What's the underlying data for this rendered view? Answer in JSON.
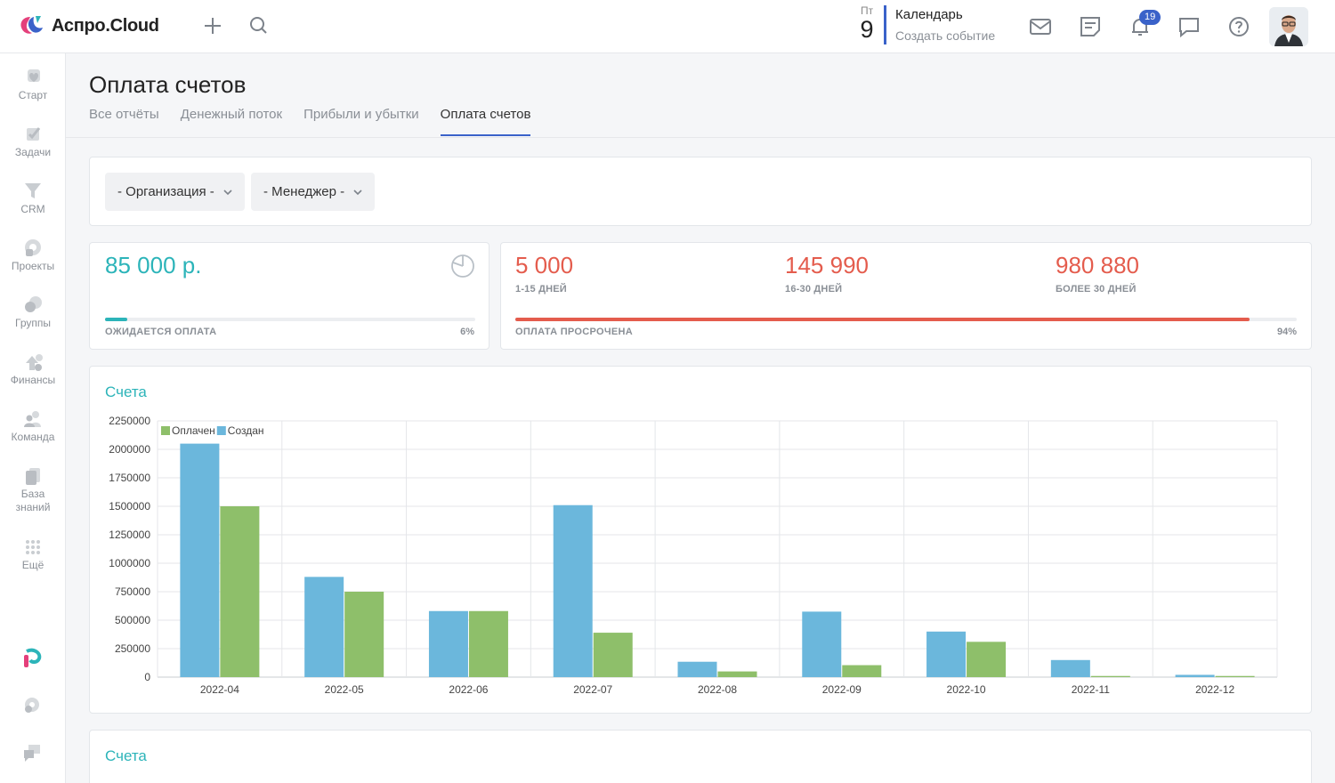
{
  "app": {
    "name": "Аспро.Cloud"
  },
  "topbar": {
    "calendar": {
      "day_of_week": "Пт",
      "day": "9",
      "title": "Календарь",
      "subtitle": "Создать событие"
    },
    "notifications_count": "19",
    "icons": [
      "plus-icon",
      "search-icon",
      "mail-icon",
      "notes-icon",
      "bell-icon",
      "chat-icon",
      "help-icon"
    ]
  },
  "sidebar": {
    "items": [
      {
        "label": "Старт",
        "icon": "heart-icon"
      },
      {
        "label": "Задачи",
        "icon": "check-icon"
      },
      {
        "label": "CRM",
        "icon": "funnel-icon"
      },
      {
        "label": "Проекты",
        "icon": "projects-icon"
      },
      {
        "label": "Группы",
        "icon": "groups-icon"
      },
      {
        "label": "Финансы",
        "icon": "finance-icon"
      },
      {
        "label": "Команда",
        "icon": "team-icon"
      },
      {
        "label": "База знаний",
        "icon": "knowledge-icon"
      },
      {
        "label": "Ещё",
        "icon": "more-dots-icon"
      }
    ]
  },
  "page": {
    "title": "Оплата счетов",
    "tabs": [
      {
        "label": "Все отчёты",
        "active": false
      },
      {
        "label": "Денежный поток",
        "active": false
      },
      {
        "label": "Прибыли и убытки",
        "active": false
      },
      {
        "label": "Оплата счетов",
        "active": true
      }
    ]
  },
  "filters": {
    "organization": "- Организация -",
    "manager": "- Менеджер -"
  },
  "awaiting": {
    "amount": "85 000 р.",
    "label": "ОЖИДАЕТСЯ ОПЛАТА",
    "percent_text": "6%",
    "progress": 0.06,
    "color": "#2cb4b9"
  },
  "overdue": {
    "buckets": [
      {
        "amount": "5 000",
        "label": "1-15 ДНЕЙ"
      },
      {
        "amount": "145 990",
        "label": "16-30 ДНЕЙ"
      },
      {
        "amount": "980 880",
        "label": "БОЛЕЕ 30 ДНЕЙ"
      }
    ],
    "label": "ОПЛАТА ПРОСРОЧЕНА",
    "percent_text": "94%",
    "progress": 0.94,
    "color": "#e45c4d"
  },
  "chart_data": {
    "type": "bar",
    "title": "Счета",
    "categories": [
      "2022-04",
      "2022-05",
      "2022-06",
      "2022-07",
      "2022-08",
      "2022-09",
      "2022-10",
      "2022-11",
      "2022-12"
    ],
    "series": [
      {
        "name": "Создан",
        "color": "#6bb7dc",
        "values": [
          2050000,
          880000,
          580000,
          1510000,
          135000,
          575000,
          400000,
          150000,
          20000
        ]
      },
      {
        "name": "Оплачен",
        "color": "#8ebf6a",
        "values": [
          1500000,
          750000,
          580000,
          390000,
          50000,
          105000,
          310000,
          10000,
          10000
        ]
      }
    ],
    "legend": [
      "Оплачен",
      "Создан"
    ],
    "legend_placement": "top-left",
    "yticks": [
      "0",
      "250000",
      "500000",
      "750000",
      "1000000",
      "1250000",
      "1500000",
      "1750000",
      "2000000",
      "2250000"
    ],
    "ylim": [
      0,
      2250000
    ],
    "grid": true
  },
  "second_chart": {
    "title": "Счета"
  }
}
